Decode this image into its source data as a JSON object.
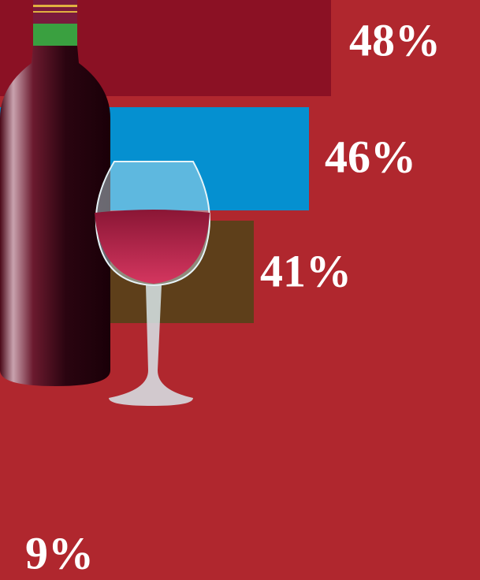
{
  "chart_data": {
    "type": "hbar",
    "values": [
      48,
      46,
      41,
      9
    ],
    "value_labels": [
      "48%",
      "46%",
      "41%",
      "9%"
    ],
    "colors": [
      "#8b1124",
      "#0590d0",
      "#5e3f1a",
      "#8b1124"
    ],
    "xlim": [
      18,
      61.5
    ]
  }
}
